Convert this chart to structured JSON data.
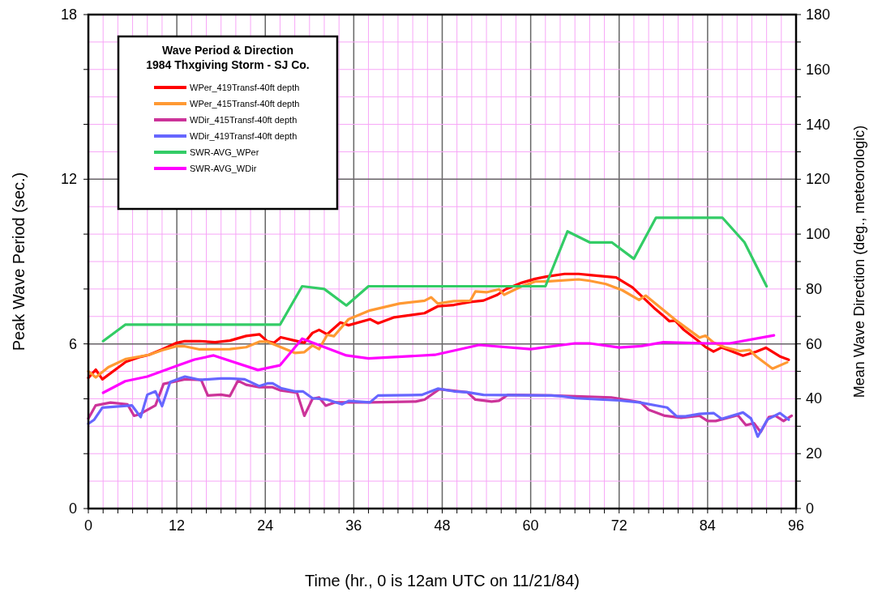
{
  "chart_data": {
    "type": "line",
    "title": "Wave Period & Direction",
    "subtitle": "1984 Thxgiving Storm - SJ Co.",
    "xlabel": "Time (hr., 0 is 12am UTC on 11/21/84)",
    "ylabel": "Peak Wave Period (sec.)",
    "y2label": "Mean Wave Direction (deg., meteorologic)",
    "xlim": [
      0,
      96
    ],
    "xticks": [
      0,
      {
        "value": 2,
        "label": null
      },
      {
        "value": 4,
        "label": null
      },
      {
        "value": 6,
        "label": null
      },
      {
        "value": 8,
        "label": null
      },
      {
        "value": 10,
        "label": null
      },
      12,
      {
        "value": 14,
        "label": null
      },
      {
        "value": 16,
        "label": null
      },
      {
        "value": 18,
        "label": null
      },
      {
        "value": 20,
        "label": null
      },
      {
        "value": 22,
        "label": null
      },
      24,
      {
        "value": 26,
        "label": null
      },
      {
        "value": 28,
        "label": null
      },
      {
        "value": 30,
        "label": null
      },
      {
        "value": 32,
        "label": null
      },
      {
        "value": 34,
        "label": null
      },
      36,
      {
        "value": 38,
        "label": null
      },
      {
        "value": 40,
        "label": null
      },
      {
        "value": 42,
        "label": null
      },
      {
        "value": 44,
        "label": null
      },
      {
        "value": 46,
        "label": null
      },
      48,
      {
        "value": 50,
        "label": null
      },
      {
        "value": 52,
        "label": null
      },
      {
        "value": 54,
        "label": null
      },
      {
        "value": 56,
        "label": null
      },
      {
        "value": 58,
        "label": null
      },
      60,
      {
        "value": 62,
        "label": null
      },
      {
        "value": 64,
        "label": null
      },
      {
        "value": 66,
        "label": null
      },
      {
        "value": 68,
        "label": null
      },
      {
        "value": 70,
        "label": null
      },
      72,
      {
        "value": 74,
        "label": null
      },
      {
        "value": 76,
        "label": null
      },
      {
        "value": 78,
        "label": null
      },
      {
        "value": 80,
        "label": null
      },
      {
        "value": 82,
        "label": null
      },
      84,
      {
        "value": 86,
        "label": null
      },
      {
        "value": 88,
        "label": null
      },
      {
        "value": 90,
        "label": null
      },
      {
        "value": 92,
        "label": null
      },
      {
        "value": 94,
        "label": null
      },
      96
    ],
    "ylim": [
      0,
      18
    ],
    "yticks": [
      0,
      {
        "value": 2,
        "label": null
      },
      {
        "value": 4,
        "label": null
      },
      6,
      {
        "value": 8,
        "label": null
      },
      {
        "value": 10,
        "label": null
      },
      12,
      {
        "value": 14,
        "label": null
      },
      {
        "value": 16,
        "label": null
      },
      18
    ],
    "y2lim": [
      0,
      180
    ],
    "y2ticks": [
      0,
      {
        "value": 10,
        "label": null
      },
      20,
      {
        "value": 30,
        "label": null
      },
      40,
      {
        "value": 50,
        "label": null
      },
      60,
      {
        "value": 70,
        "label": null
      },
      80,
      {
        "value": 90,
        "label": null
      },
      100,
      {
        "value": 110,
        "label": null
      },
      120,
      {
        "value": 130,
        "label": null
      },
      140,
      {
        "value": 150,
        "label": null
      },
      160,
      {
        "value": 170,
        "label": null
      },
      180
    ],
    "grid": true,
    "legend": "top left",
    "marker": "none",
    "line_style": "solid",
    "series": [
      {
        "name": "WPer_419Transf-40ft depth",
        "color": "#ff0000",
        "x": [
          0,
          1,
          1.9,
          5.1,
          7.1,
          8.2,
          10,
          12,
          13.1,
          15.1,
          17.2,
          19.2,
          21.4,
          23.2,
          24.3,
          25.2,
          26.1,
          28,
          29.3,
          30.4,
          31.3,
          32.4,
          34.2,
          35.3,
          38.2,
          39.3,
          41.5,
          45.6,
          47.4,
          49.6,
          51.8,
          53.6,
          55.5,
          56.6,
          58.8,
          60.6,
          62.1,
          64.6,
          66.5,
          68.3,
          71.6,
          73.8,
          76.7,
          77.8,
          78.8,
          79.6,
          80.7,
          82.6,
          83.7,
          84.8,
          85.9,
          88.8,
          90.6,
          91.9,
          93.9,
          95
        ],
        "values": [
          4.76,
          5.06,
          4.71,
          5.35,
          5.53,
          5.6,
          5.8,
          6.04,
          6.1,
          6.1,
          6.06,
          6.12,
          6.29,
          6.35,
          6.09,
          6.04,
          6.24,
          6.12,
          6.04,
          6.4,
          6.51,
          6.35,
          6.78,
          6.68,
          6.9,
          6.75,
          6.97,
          7.12,
          7.37,
          7.42,
          7.53,
          7.58,
          7.79,
          7.99,
          8.23,
          8.37,
          8.45,
          8.55,
          8.55,
          8.5,
          8.42,
          8.06,
          7.32,
          7.07,
          6.83,
          6.85,
          6.53,
          6.14,
          5.89,
          5.72,
          5.87,
          5.57,
          5.72,
          5.86,
          5.53,
          5.42
        ]
      },
      {
        "name": "WPer_415Transf-40ft depth",
        "color": "#ff9933",
        "x": [
          0,
          1,
          2.7,
          5.1,
          8.2,
          10,
          12,
          13.1,
          15.1,
          19.2,
          21.4,
          23.2,
          24.3,
          28,
          29.3,
          30.4,
          31.3,
          32.4,
          33.3,
          35.3,
          38.2,
          42.2,
          45.6,
          46.5,
          47.4,
          49.6,
          51.8,
          52.5,
          54,
          55.7,
          56.4,
          58.8,
          60.6,
          62.5,
          66.5,
          68,
          70.2,
          72.4,
          74.7,
          75.6,
          79.6,
          82.9,
          83.7,
          84.8,
          86.3,
          88.4,
          89.7,
          90.6,
          92.8,
          94.8
        ],
        "values": [
          5.0,
          4.78,
          5.15,
          5.45,
          5.6,
          5.77,
          5.92,
          5.91,
          5.8,
          5.81,
          5.88,
          6.08,
          6.08,
          5.67,
          5.7,
          5.94,
          5.81,
          6.33,
          6.28,
          6.9,
          7.22,
          7.47,
          7.57,
          7.7,
          7.47,
          7.56,
          7.57,
          7.91,
          7.88,
          7.99,
          7.79,
          8.1,
          8.27,
          8.28,
          8.35,
          8.3,
          8.18,
          7.96,
          7.6,
          7.76,
          6.88,
          6.23,
          6.3,
          6.05,
          5.88,
          5.74,
          5.78,
          5.54,
          5.1,
          5.33
        ]
      },
      {
        "name": "WDir_415Transf-40ft depth",
        "color": "#cc3399",
        "axis": "y2",
        "x": [
          0,
          1,
          3,
          5.3,
          6.2,
          6.9,
          9.1,
          10.2,
          13.1,
          15.3,
          16.2,
          18,
          19.2,
          20.3,
          21.4,
          23.2,
          25,
          26.1,
          28.3,
          29.3,
          30.4,
          31.3,
          32.2,
          33.5,
          38.2,
          44.4,
          45.6,
          47.6,
          51.4,
          52.5,
          54.7,
          55.7,
          56.9,
          62.8,
          70.9,
          74.9,
          76,
          78.2,
          80.4,
          82.9,
          84,
          85.1,
          88.1,
          89.2,
          90.3,
          91.2,
          92.3,
          93.2,
          94.3,
          95.4
        ],
        "values": [
          32.8,
          37.6,
          38.6,
          38.0,
          33.8,
          34.3,
          37.6,
          45.4,
          47.1,
          46.9,
          41.2,
          41.5,
          41.0,
          46.6,
          45.1,
          44.2,
          44.2,
          43.0,
          42.2,
          33.8,
          40.0,
          40.5,
          37.5,
          38.7,
          38.7,
          39.0,
          39.7,
          43.5,
          42.4,
          39.7,
          39.0,
          39.3,
          41.4,
          41.2,
          40.5,
          38.7,
          36.0,
          33.8,
          33.1,
          33.8,
          31.9,
          31.9,
          34.0,
          30.4,
          31.1,
          27.9,
          33.3,
          33.8,
          31.9,
          33.8
        ]
      },
      {
        "name": "WDir_419Transf-40ft depth",
        "color": "#6666ff",
        "axis": "y2",
        "x": [
          0,
          0.8,
          1.9,
          5.9,
          7.1,
          8,
          9.1,
          10,
          11.1,
          13.1,
          15.1,
          18,
          19.2,
          21.2,
          23.2,
          24.3,
          25,
          26.1,
          28,
          29.1,
          30.4,
          32.4,
          34.4,
          35.3,
          38.2,
          39.3,
          45.2,
          47.4,
          49.6,
          51.4,
          53.6,
          62.8,
          64.3,
          66.1,
          72,
          74.7,
          78.5,
          79.8,
          81,
          82.9,
          84.8,
          85.9,
          88.8,
          89.9,
          90.8,
          92.1,
          93.8,
          95
        ],
        "values": [
          30.9,
          32.4,
          36.8,
          37.6,
          33.3,
          41.5,
          42.7,
          37.3,
          46.1,
          48.1,
          46.9,
          47.4,
          47.4,
          47.1,
          44.6,
          45.6,
          45.6,
          43.9,
          42.7,
          42.7,
          40.2,
          39.7,
          38.0,
          39.2,
          38.7,
          41.2,
          41.4,
          43.7,
          42.7,
          42.4,
          41.4,
          41.2,
          40.9,
          40.2,
          39.4,
          38.7,
          36.8,
          33.6,
          33.6,
          34.5,
          34.8,
          32.7,
          35.0,
          32.8,
          26.2,
          32.4,
          34.8,
          32.4
        ]
      },
      {
        "name": "SWR-AVG_WPer",
        "color": "#33cc66",
        "x": [
          2,
          5,
          26,
          29,
          32,
          35,
          38,
          62,
          65,
          68,
          71,
          74,
          77,
          86,
          89,
          92
        ],
        "values": [
          6.1,
          6.7,
          6.7,
          8.1,
          8.0,
          7.4,
          8.1,
          8.1,
          10.1,
          9.7,
          9.7,
          9.1,
          10.6,
          10.6,
          9.7,
          8.1
        ]
      },
      {
        "name": "SWR-AVG_WDir",
        "color": "#ff00ff",
        "axis": "y2",
        "x": [
          2,
          5,
          8,
          12,
          14.4,
          17,
          23,
          26,
          29,
          35,
          38,
          47,
          53,
          60,
          66,
          68,
          72,
          75,
          78,
          84,
          87,
          93
        ],
        "values": [
          42.2,
          46.4,
          48.1,
          52.0,
          54.3,
          55.8,
          50.5,
          52.2,
          61.9,
          55.8,
          54.7,
          56.0,
          59.6,
          58.1,
          60.2,
          60.2,
          58.7,
          59.2,
          60.6,
          60.2,
          60.2,
          63.1
        ]
      }
    ]
  }
}
